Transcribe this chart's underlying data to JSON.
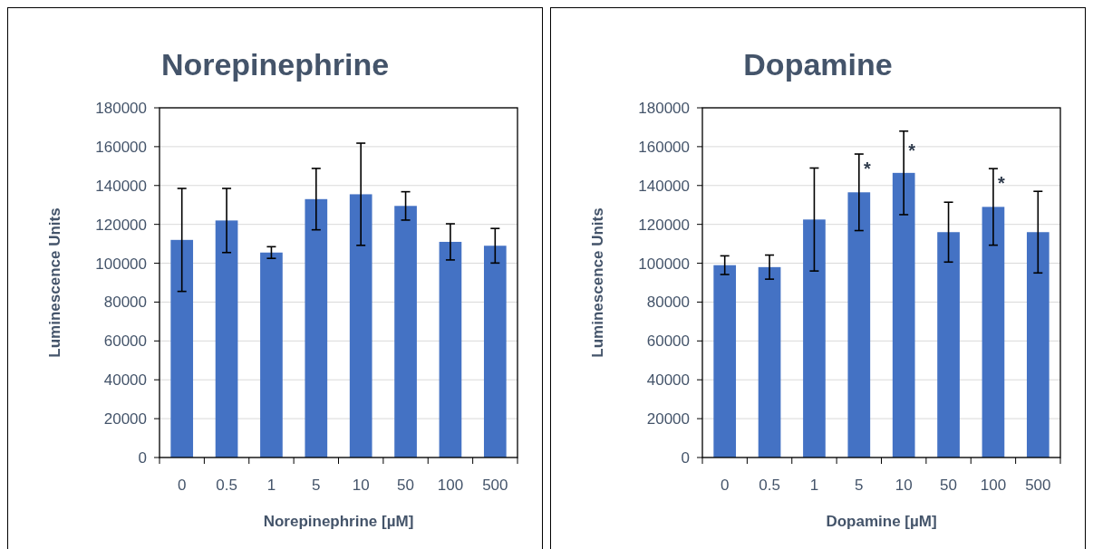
{
  "chart_data": [
    {
      "type": "bar",
      "title": "Norepinephrine",
      "xlabel": "Norepinephrine [µM]",
      "ylabel": "Luminescence Units",
      "categories": [
        "0",
        "0.5",
        "1",
        "5",
        "10",
        "50",
        "100",
        "500"
      ],
      "series": [
        {
          "color": "#4472c4",
          "values": [
            112000,
            122000,
            105500,
            133000,
            135500,
            129500,
            111000,
            109000
          ],
          "errors": [
            26500,
            16500,
            3000,
            15800,
            26300,
            7300,
            9300,
            8900
          ]
        }
      ],
      "ylim": [
        0,
        180000
      ],
      "yticks": [
        0,
        20000,
        40000,
        60000,
        80000,
        100000,
        120000,
        140000,
        160000,
        180000
      ],
      "grid": "y"
    },
    {
      "type": "bar",
      "title": "Dopamine",
      "xlabel": "Dopamine [µM]",
      "ylabel": "Luminescence Units",
      "categories": [
        "0",
        "0.5",
        "1",
        "5",
        "10",
        "50",
        "100",
        "500"
      ],
      "series": [
        {
          "color": "#4472c4",
          "values": [
            99000,
            98000,
            122500,
            136500,
            146500,
            116000,
            129000,
            116000
          ],
          "errors": [
            4800,
            6200,
            26500,
            19700,
            21500,
            15400,
            19700,
            21000
          ]
        }
      ],
      "ylim": [
        0,
        180000
      ],
      "yticks": [
        0,
        20000,
        40000,
        60000,
        80000,
        100000,
        120000,
        140000,
        160000,
        180000
      ],
      "grid": "y",
      "annotations": [
        {
          "text": "*",
          "x": "5",
          "y": 151000
        },
        {
          "text": "*",
          "x": "10",
          "y": 160500
        },
        {
          "text": "*",
          "x": "100",
          "y": 143500
        }
      ]
    }
  ]
}
